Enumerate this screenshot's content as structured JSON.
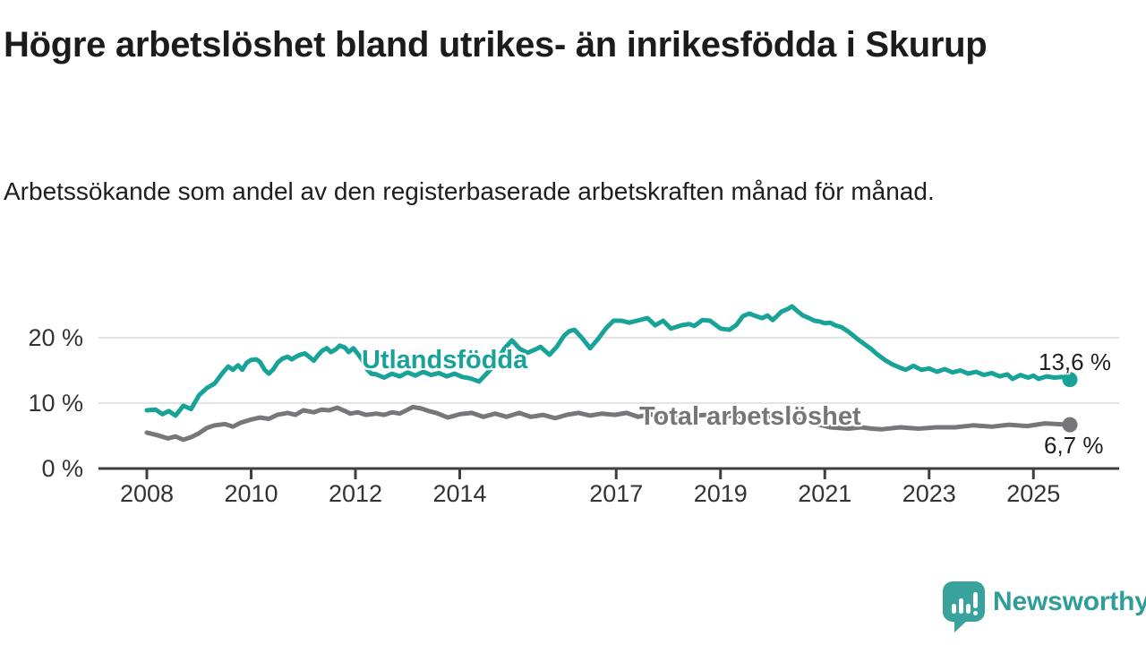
{
  "title": "Högre arbetslöshet bland utrikes- än inrikesfödda i Skurup",
  "subtitle": "Arbetssökande som andel av den registerbaserade arbetskraften månad för månad.",
  "branding": {
    "logo_text": "Newsworthy",
    "logo_icon": "newsworthy-speech-bubble-bar-chart-icon"
  },
  "colors": {
    "foreign_born_line": "#17a398",
    "total_line": "#77777b",
    "gridline": "#dcdcdc",
    "axis": "#3f3f3f",
    "axis_label": "#333333",
    "title_text": "#1c1c1c",
    "logo_teal": "#3aa29c"
  },
  "chart_data": {
    "type": "line",
    "title": "Högre arbetslöshet bland utrikes- än inrikesfödda i Skurup",
    "xlabel": "",
    "ylabel": "",
    "grid": "horizontal-only",
    "legend_position": "labels-on-lines",
    "x_axis": {
      "range": [
        2007.1,
        2026.6
      ],
      "ticks": [
        {
          "value": 2008,
          "label": "2008"
        },
        {
          "value": 2010,
          "label": "2010"
        },
        {
          "value": 2012,
          "label": "2012"
        },
        {
          "value": 2014,
          "label": "2014"
        },
        {
          "value": 2017,
          "label": "2017"
        },
        {
          "value": 2019,
          "label": "2019"
        },
        {
          "value": 2021,
          "label": "2021"
        },
        {
          "value": 2023,
          "label": "2023"
        },
        {
          "value": 2025,
          "label": "2025"
        }
      ]
    },
    "y_axis": {
      "range": [
        0,
        26.5
      ],
      "unit": "%",
      "ticks": [
        {
          "value": 20,
          "label": "20 %",
          "gridline": true
        },
        {
          "value": 10,
          "label": "10 %",
          "gridline": true
        },
        {
          "value": 0,
          "label": "0 %",
          "gridline": false
        }
      ]
    },
    "series": [
      {
        "id": "utlandsfodda",
        "name": "Utlandsfödda",
        "color": "#17a398",
        "end_value": 13.6,
        "end_label": "13,6 %",
        "points": [
          [
            2008.0,
            8.9
          ],
          [
            2008.17,
            9.0
          ],
          [
            2008.3,
            8.3
          ],
          [
            2008.42,
            8.8
          ],
          [
            2008.55,
            8.1
          ],
          [
            2008.7,
            9.6
          ],
          [
            2008.85,
            9.1
          ],
          [
            2009.0,
            11.2
          ],
          [
            2009.15,
            12.3
          ],
          [
            2009.3,
            13.0
          ],
          [
            2009.45,
            14.6
          ],
          [
            2009.56,
            15.6
          ],
          [
            2009.65,
            15.1
          ],
          [
            2009.75,
            15.8
          ],
          [
            2009.83,
            15.1
          ],
          [
            2009.92,
            16.2
          ],
          [
            2010.0,
            16.6
          ],
          [
            2010.1,
            16.7
          ],
          [
            2010.17,
            16.3
          ],
          [
            2010.26,
            15.1
          ],
          [
            2010.34,
            14.5
          ],
          [
            2010.43,
            15.2
          ],
          [
            2010.51,
            16.2
          ],
          [
            2010.6,
            16.8
          ],
          [
            2010.7,
            17.1
          ],
          [
            2010.78,
            16.7
          ],
          [
            2010.86,
            17.1
          ],
          [
            2010.94,
            17.4
          ],
          [
            2011.03,
            17.6
          ],
          [
            2011.11,
            17.1
          ],
          [
            2011.2,
            16.5
          ],
          [
            2011.28,
            17.3
          ],
          [
            2011.36,
            18.0
          ],
          [
            2011.45,
            18.4
          ],
          [
            2011.53,
            17.8
          ],
          [
            2011.62,
            18.2
          ],
          [
            2011.7,
            18.8
          ],
          [
            2011.8,
            18.5
          ],
          [
            2011.87,
            17.8
          ],
          [
            2011.96,
            18.4
          ],
          [
            2012.05,
            17.5
          ],
          [
            2012.13,
            16.6
          ],
          [
            2012.22,
            15.2
          ],
          [
            2012.3,
            14.5
          ],
          [
            2012.4,
            14.4
          ],
          [
            2012.55,
            13.9
          ],
          [
            2012.7,
            14.5
          ],
          [
            2012.85,
            14.1
          ],
          [
            2013.0,
            14.7
          ],
          [
            2013.15,
            14.2
          ],
          [
            2013.3,
            14.8
          ],
          [
            2013.45,
            14.3
          ],
          [
            2013.6,
            14.6
          ],
          [
            2013.75,
            14.1
          ],
          [
            2013.9,
            14.5
          ],
          [
            2014.05,
            14.0
          ],
          [
            2014.2,
            13.8
          ],
          [
            2014.37,
            13.3
          ],
          [
            2014.55,
            14.8
          ],
          [
            2014.7,
            16.2
          ],
          [
            2014.85,
            18.3
          ],
          [
            2015.0,
            19.6
          ],
          [
            2015.15,
            18.3
          ],
          [
            2015.3,
            17.7
          ],
          [
            2015.45,
            18.2
          ],
          [
            2015.55,
            18.6
          ],
          [
            2015.72,
            17.4
          ],
          [
            2015.86,
            18.6
          ],
          [
            2016.0,
            20.3
          ],
          [
            2016.1,
            21.0
          ],
          [
            2016.2,
            21.2
          ],
          [
            2016.35,
            19.9
          ],
          [
            2016.5,
            18.4
          ],
          [
            2016.65,
            19.8
          ],
          [
            2016.8,
            21.4
          ],
          [
            2016.95,
            22.6
          ],
          [
            2017.1,
            22.6
          ],
          [
            2017.25,
            22.3
          ],
          [
            2017.4,
            22.6
          ],
          [
            2017.6,
            23.0
          ],
          [
            2017.75,
            21.9
          ],
          [
            2017.9,
            22.6
          ],
          [
            2018.05,
            21.4
          ],
          [
            2018.25,
            21.9
          ],
          [
            2018.4,
            22.1
          ],
          [
            2018.5,
            21.8
          ],
          [
            2018.65,
            22.7
          ],
          [
            2018.8,
            22.6
          ],
          [
            2019.0,
            21.4
          ],
          [
            2019.17,
            21.2
          ],
          [
            2019.3,
            21.9
          ],
          [
            2019.43,
            23.3
          ],
          [
            2019.55,
            23.7
          ],
          [
            2019.68,
            23.3
          ],
          [
            2019.8,
            23.0
          ],
          [
            2019.9,
            23.4
          ],
          [
            2020.0,
            22.7
          ],
          [
            2020.08,
            23.3
          ],
          [
            2020.17,
            24.0
          ],
          [
            2020.29,
            24.4
          ],
          [
            2020.37,
            24.8
          ],
          [
            2020.47,
            24.1
          ],
          [
            2020.58,
            23.4
          ],
          [
            2020.7,
            23.0
          ],
          [
            2020.8,
            22.6
          ],
          [
            2020.9,
            22.5
          ],
          [
            2021.0,
            22.2
          ],
          [
            2021.1,
            22.3
          ],
          [
            2021.2,
            21.9
          ],
          [
            2021.32,
            21.6
          ],
          [
            2021.44,
            21.0
          ],
          [
            2021.55,
            20.3
          ],
          [
            2021.66,
            19.6
          ],
          [
            2021.78,
            18.9
          ],
          [
            2021.9,
            18.2
          ],
          [
            2022.0,
            17.5
          ],
          [
            2022.15,
            16.6
          ],
          [
            2022.3,
            15.9
          ],
          [
            2022.45,
            15.4
          ],
          [
            2022.55,
            15.1
          ],
          [
            2022.7,
            15.7
          ],
          [
            2022.85,
            15.1
          ],
          [
            2023.0,
            15.3
          ],
          [
            2023.15,
            14.8
          ],
          [
            2023.3,
            15.2
          ],
          [
            2023.45,
            14.7
          ],
          [
            2023.6,
            15.0
          ],
          [
            2023.75,
            14.5
          ],
          [
            2023.9,
            14.8
          ],
          [
            2024.05,
            14.3
          ],
          [
            2024.2,
            14.6
          ],
          [
            2024.35,
            14.1
          ],
          [
            2024.5,
            14.4
          ],
          [
            2024.6,
            13.7
          ],
          [
            2024.75,
            14.3
          ],
          [
            2024.9,
            13.9
          ],
          [
            2025.0,
            14.2
          ],
          [
            2025.1,
            13.7
          ],
          [
            2025.25,
            14.1
          ],
          [
            2025.4,
            13.9
          ],
          [
            2025.55,
            14.0
          ],
          [
            2025.7,
            13.6
          ]
        ]
      },
      {
        "id": "total",
        "name": "Total arbetslöshet",
        "color": "#77777b",
        "end_value": 6.7,
        "end_label": "6,7 %",
        "points": [
          [
            2008.0,
            5.5
          ],
          [
            2008.2,
            5.1
          ],
          [
            2008.4,
            4.6
          ],
          [
            2008.55,
            4.9
          ],
          [
            2008.7,
            4.4
          ],
          [
            2008.85,
            4.8
          ],
          [
            2009.0,
            5.4
          ],
          [
            2009.15,
            6.2
          ],
          [
            2009.3,
            6.6
          ],
          [
            2009.5,
            6.8
          ],
          [
            2009.65,
            6.4
          ],
          [
            2009.8,
            7.0
          ],
          [
            2010.0,
            7.5
          ],
          [
            2010.17,
            7.8
          ],
          [
            2010.34,
            7.6
          ],
          [
            2010.5,
            8.2
          ],
          [
            2010.7,
            8.5
          ],
          [
            2010.85,
            8.2
          ],
          [
            2011.0,
            8.9
          ],
          [
            2011.2,
            8.6
          ],
          [
            2011.35,
            9.0
          ],
          [
            2011.5,
            8.9
          ],
          [
            2011.65,
            9.3
          ],
          [
            2011.8,
            8.8
          ],
          [
            2011.9,
            8.4
          ],
          [
            2012.05,
            8.6
          ],
          [
            2012.2,
            8.2
          ],
          [
            2012.4,
            8.4
          ],
          [
            2012.55,
            8.2
          ],
          [
            2012.7,
            8.6
          ],
          [
            2012.85,
            8.4
          ],
          [
            2013.0,
            9.0
          ],
          [
            2013.1,
            9.4
          ],
          [
            2013.25,
            9.2
          ],
          [
            2013.4,
            8.8
          ],
          [
            2013.55,
            8.5
          ],
          [
            2013.77,
            7.8
          ],
          [
            2014.0,
            8.3
          ],
          [
            2014.23,
            8.5
          ],
          [
            2014.45,
            7.9
          ],
          [
            2014.68,
            8.4
          ],
          [
            2014.9,
            7.9
          ],
          [
            2015.14,
            8.5
          ],
          [
            2015.36,
            7.9
          ],
          [
            2015.6,
            8.2
          ],
          [
            2015.83,
            7.7
          ],
          [
            2016.05,
            8.2
          ],
          [
            2016.28,
            8.5
          ],
          [
            2016.5,
            8.1
          ],
          [
            2016.73,
            8.4
          ],
          [
            2016.97,
            8.2
          ],
          [
            2017.2,
            8.5
          ],
          [
            2017.42,
            7.9
          ],
          [
            2017.66,
            8.3
          ],
          [
            2017.88,
            7.9
          ],
          [
            2018.1,
            8.2
          ],
          [
            2018.4,
            8.0
          ],
          [
            2018.7,
            8.2
          ],
          [
            2019.0,
            7.9
          ],
          [
            2019.3,
            8.1
          ],
          [
            2019.6,
            7.8
          ],
          [
            2019.9,
            8.0
          ],
          [
            2020.2,
            7.8
          ],
          [
            2020.5,
            7.4
          ],
          [
            2020.85,
            6.8
          ],
          [
            2021.1,
            6.3
          ],
          [
            2021.45,
            6.1
          ],
          [
            2021.7,
            6.3
          ],
          [
            2021.9,
            6.1
          ],
          [
            2022.1,
            6.0
          ],
          [
            2022.45,
            6.3
          ],
          [
            2022.8,
            6.1
          ],
          [
            2023.14,
            6.3
          ],
          [
            2023.5,
            6.3
          ],
          [
            2023.84,
            6.6
          ],
          [
            2024.2,
            6.4
          ],
          [
            2024.53,
            6.7
          ],
          [
            2024.88,
            6.5
          ],
          [
            2025.22,
            6.9
          ],
          [
            2025.45,
            6.8
          ],
          [
            2025.7,
            6.7
          ]
        ]
      }
    ]
  }
}
